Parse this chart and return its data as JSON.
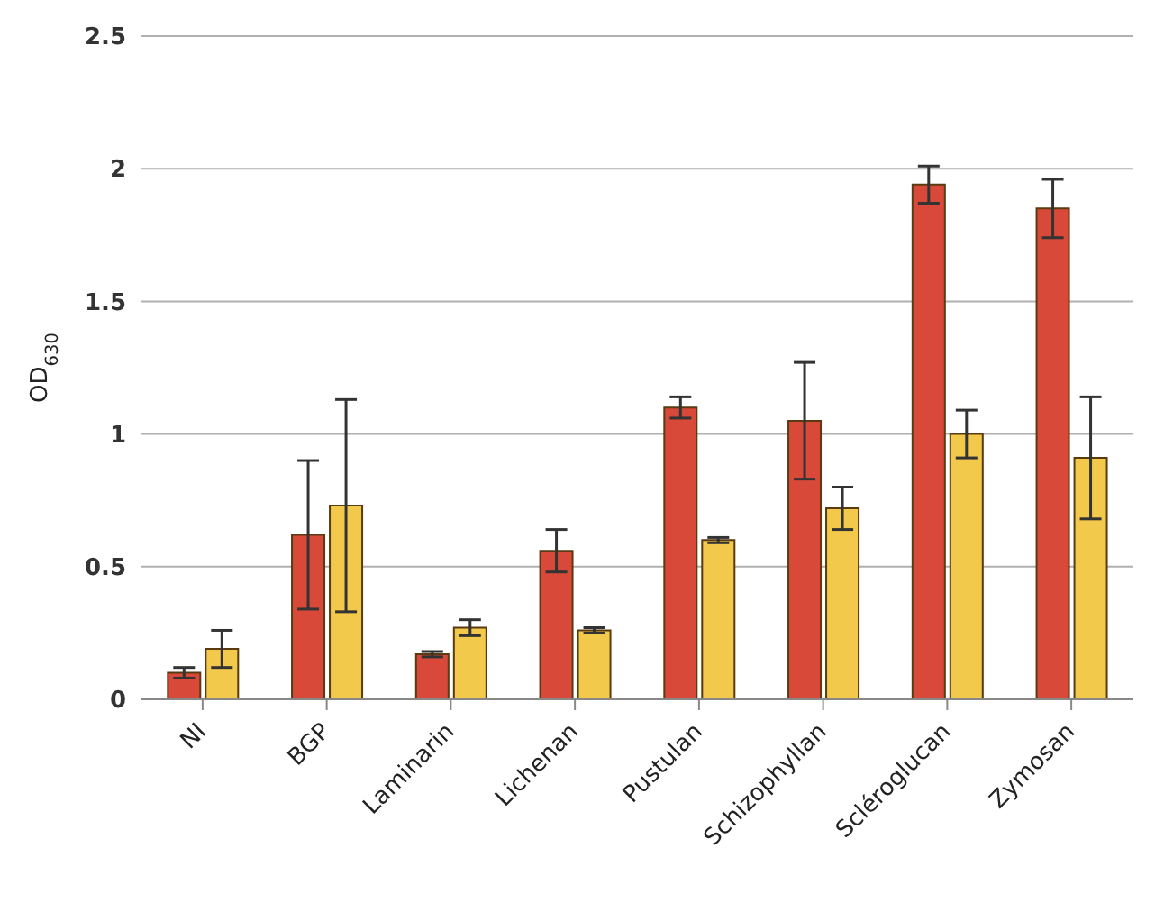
{
  "chart_data": {
    "type": "bar",
    "ylabel": "OD$_{630}$",
    "categories": [
      "NI",
      "BGP",
      "Laminarin",
      "Lichenan",
      "Pustulan",
      "Schizophyllan",
      "Scléroglucan",
      "Zymosan"
    ],
    "series": [
      {
        "color": "#d9493a",
        "values": [
          0.1,
          0.62,
          0.17,
          0.56,
          1.1,
          1.05,
          1.94,
          1.85
        ],
        "errors": [
          0.02,
          0.28,
          0.01,
          0.08,
          0.04,
          0.22,
          0.07,
          0.11
        ]
      },
      {
        "color": "#f2c94a",
        "values": [
          0.19,
          0.73,
          0.27,
          0.26,
          0.6,
          0.72,
          1.0,
          0.91
        ],
        "errors": [
          0.07,
          0.4,
          0.03,
          0.01,
          0.01,
          0.08,
          0.09,
          0.23
        ]
      }
    ],
    "ylim": [
      0,
      2.5
    ],
    "yticks": [
      0,
      0.5,
      1,
      1.5,
      2,
      2.5
    ],
    "grid": "y"
  }
}
